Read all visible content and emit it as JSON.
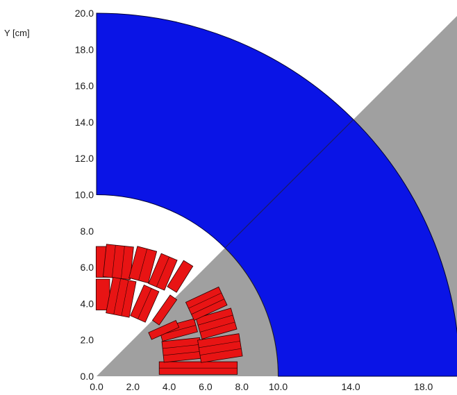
{
  "chart_data": {
    "type": "diagram",
    "ylabel": "Y [cm]",
    "xlabel": "",
    "xlim": [
      0,
      20
    ],
    "ylim": [
      0,
      20
    ],
    "x_ticks": [
      "0.0",
      "2.0",
      "4.0",
      "6.0",
      "8.0",
      "10.0",
      "14.0",
      "18.0"
    ],
    "x_tick_values": [
      0,
      2,
      4,
      6,
      8,
      10,
      14,
      18
    ],
    "y_ticks": [
      "0.0",
      "2.0",
      "4.0",
      "6.0",
      "8.0",
      "10.0",
      "12.0",
      "14.0",
      "16.0",
      "18.0",
      "20.0"
    ],
    "y_tick_values": [
      0,
      2,
      4,
      6,
      8,
      10,
      12,
      14,
      16,
      18,
      20
    ],
    "regions": [
      {
        "name": "iron yoke",
        "shape": "annular sector",
        "r_inner": 10,
        "r_outer": 20,
        "angle_from_deg": 0,
        "angle_to_deg": 90,
        "color": "#0a14e6"
      },
      {
        "name": "inner collar region",
        "shape": "circular sector",
        "r_outer": 10,
        "angle_from_deg": 0,
        "angle_to_deg": 45,
        "color": "#a0a0a0"
      },
      {
        "name": "outer wedge region",
        "shape": "polygon",
        "color": "#a0a0a0"
      }
    ],
    "coil_blocks_color": "#e81414",
    "coil_blocks": [
      {
        "group": "upper-left",
        "center": [
          0.35,
          6.3
        ],
        "angle_deg": 90,
        "length": 1.7,
        "width": 0.75,
        "turns": 1
      },
      {
        "group": "upper-left",
        "center": [
          1.2,
          6.3
        ],
        "angle_deg": 84,
        "length": 1.8,
        "width": 1.5,
        "turns": 3
      },
      {
        "group": "upper-left",
        "center": [
          2.55,
          6.15
        ],
        "angle_deg": 75,
        "length": 1.8,
        "width": 1.1,
        "turns": 2
      },
      {
        "group": "upper-left",
        "center": [
          3.65,
          5.75
        ],
        "angle_deg": 67,
        "length": 1.8,
        "width": 0.95,
        "turns": 2
      },
      {
        "group": "upper-left",
        "center": [
          4.6,
          5.5
        ],
        "angle_deg": 58,
        "length": 1.7,
        "width": 0.6,
        "turns": 1
      },
      {
        "group": "upper-left",
        "center": [
          0.35,
          4.5
        ],
        "angle_deg": 90,
        "length": 1.7,
        "width": 0.75,
        "turns": 1
      },
      {
        "group": "upper-left",
        "center": [
          1.35,
          4.35
        ],
        "angle_deg": 79,
        "length": 2.0,
        "width": 1.3,
        "turns": 3
      },
      {
        "group": "upper-left",
        "center": [
          2.65,
          4.0
        ],
        "angle_deg": 66,
        "length": 1.85,
        "width": 0.9,
        "turns": 2
      },
      {
        "group": "upper-left",
        "center": [
          3.75,
          3.65
        ],
        "angle_deg": 55,
        "length": 1.7,
        "width": 0.45,
        "turns": 1
      },
      {
        "group": "lower-right",
        "center": [
          5.6,
          0.45
        ],
        "angle_deg": 0,
        "length": 4.3,
        "width": 0.7,
        "turns": 2
      },
      {
        "group": "lower-right",
        "center": [
          4.7,
          1.45
        ],
        "angle_deg": 6,
        "length": 2.1,
        "width": 1.15,
        "turns": 3
      },
      {
        "group": "lower-right",
        "center": [
          6.8,
          1.55
        ],
        "angle_deg": 9,
        "length": 2.3,
        "width": 1.25,
        "turns": 3
      },
      {
        "group": "lower-right",
        "center": [
          4.5,
          2.55
        ],
        "angle_deg": 15,
        "length": 2.0,
        "width": 0.75,
        "turns": 2
      },
      {
        "group": "lower-right",
        "center": [
          6.6,
          2.9
        ],
        "angle_deg": 16,
        "length": 2.0,
        "width": 1.2,
        "turns": 3
      },
      {
        "group": "lower-right",
        "center": [
          3.7,
          2.55
        ],
        "angle_deg": 24,
        "length": 1.65,
        "width": 0.42,
        "turns": 1
      },
      {
        "group": "lower-right",
        "center": [
          6.05,
          4.0
        ],
        "angle_deg": 25,
        "length": 2.0,
        "width": 1.1,
        "turns": 3
      }
    ]
  }
}
